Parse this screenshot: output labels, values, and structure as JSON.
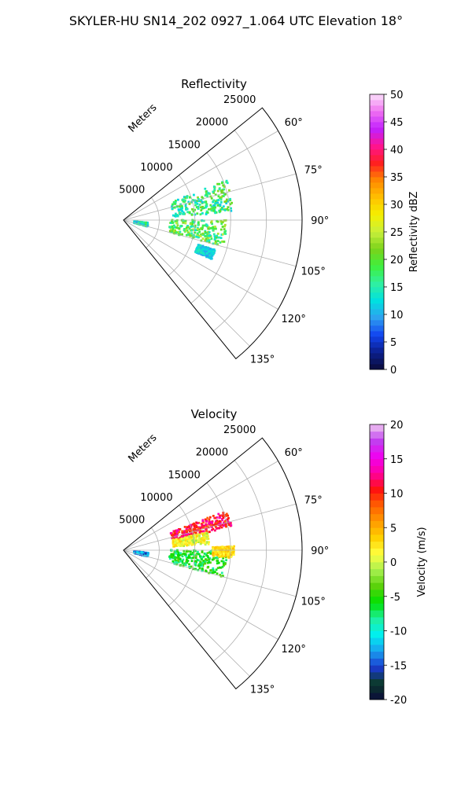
{
  "figure": {
    "title": "SKYLER-HU  SN14_202  0927_1.064 UTC Elevation 18°"
  },
  "chart_data": [
    {
      "type": "heatmap",
      "subtype": "polar-sector",
      "title": "Reflectivity",
      "radial_label": "Meters",
      "r_ticks": [
        5000,
        10000,
        15000,
        20000,
        25000
      ],
      "r_max": 25000,
      "theta_range_deg": [
        51,
        141
      ],
      "theta_ticks_deg": [
        60,
        75,
        90,
        105,
        120,
        135
      ],
      "theta_tick_labels": [
        "60°",
        "75°",
        "90°",
        "105°",
        "120°",
        "135°"
      ],
      "grid": true,
      "colorbar": {
        "label": "Reflectivity dBZ",
        "range": [
          0,
          50
        ],
        "ticks": [
          0,
          5,
          10,
          15,
          20,
          25,
          30,
          35,
          40,
          45,
          50
        ],
        "levels": 50,
        "colormap": [
          "#0b0b3a",
          "#0b1f8c",
          "#1244f0",
          "#2fa0f0",
          "#00e0e0",
          "#30f0a0",
          "#3ef03e",
          "#7ad21a",
          "#c8f03c",
          "#f5f000",
          "#ffc000",
          "#ff8800",
          "#ff2020",
          "#ff1490",
          "#c020ff",
          "#f070f0",
          "#fbe0fb"
        ]
      },
      "echo_regions": [
        {
          "theta_deg": [
            69,
            86
          ],
          "r_m": [
            7000,
            15500
          ],
          "mean": 17,
          "spread": 6
        },
        {
          "theta_deg": [
            90,
            105
          ],
          "r_m": [
            6500,
            14500
          ],
          "mean": 19,
          "spread": 6
        },
        {
          "theta_deg": [
            96,
            105
          ],
          "r_m": [
            1500,
            3500
          ],
          "mean": 14,
          "spread": 5
        },
        {
          "theta_deg": [
            108,
            114
          ],
          "r_m": [
            11000,
            13500
          ],
          "mean": 12,
          "spread": 3
        }
      ]
    },
    {
      "type": "heatmap",
      "subtype": "polar-sector",
      "title": "Velocity",
      "radial_label": "Meters",
      "r_ticks": [
        5000,
        10000,
        15000,
        20000,
        25000
      ],
      "r_max": 25000,
      "theta_range_deg": [
        51,
        141
      ],
      "theta_ticks_deg": [
        60,
        75,
        90,
        105,
        120,
        135
      ],
      "theta_tick_labels": [
        "60°",
        "75°",
        "90°",
        "105°",
        "120°",
        "135°"
      ],
      "grid": true,
      "colorbar": {
        "label": "Velocity (m/s)",
        "range": [
          -20,
          20
        ],
        "ticks": [
          -20,
          -15,
          -10,
          -5,
          0,
          5,
          10,
          15,
          20
        ],
        "levels": 40,
        "colormap": [
          "#0b0b3a",
          "#0b3a2a",
          "#1a3ad0",
          "#1aa0f0",
          "#00f0f0",
          "#20f0a0",
          "#00e000",
          "#5ad20a",
          "#a8f050",
          "#ffff40",
          "#ffd000",
          "#ff9a00",
          "#ff6000",
          "#ff1010",
          "#ff00a0",
          "#f000f0",
          "#c040f0",
          "#f0c8f0"
        ]
      },
      "echo_regions": [
        {
          "theta_deg": [
            69,
            78
          ],
          "r_m": [
            7000,
            15500
          ],
          "mean": 11,
          "spread": 3
        },
        {
          "theta_deg": [
            78,
            86
          ],
          "r_m": [
            7000,
            12000
          ],
          "mean": 1,
          "spread": 3
        },
        {
          "theta_deg": [
            90,
            105
          ],
          "r_m": [
            6500,
            14500
          ],
          "mean": -6,
          "spread": 3
        },
        {
          "theta_deg": [
            96,
            105
          ],
          "r_m": [
            1500,
            3500
          ],
          "mean": -13,
          "spread": 3
        },
        {
          "theta_deg": [
            88,
            94
          ],
          "r_m": [
            12500,
            15500
          ],
          "mean": 3,
          "spread": 2
        }
      ]
    }
  ]
}
